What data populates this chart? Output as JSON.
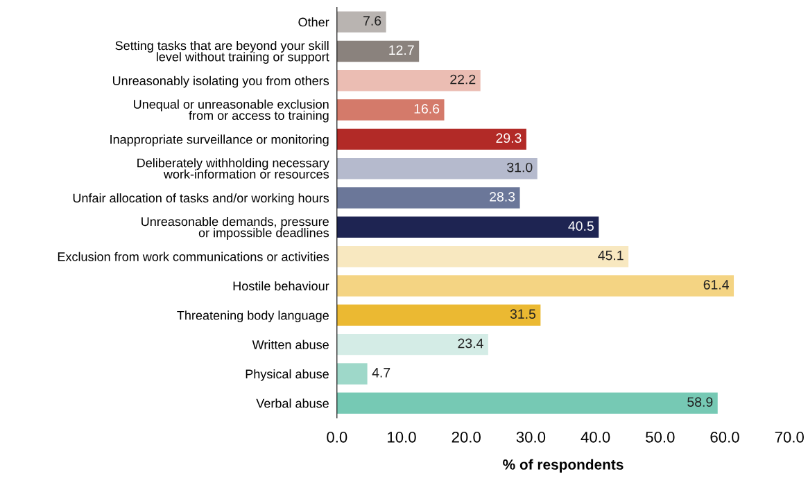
{
  "chart_data": {
    "type": "bar",
    "orientation": "horizontal",
    "xlabel": "% of respondents",
    "categories": [
      "Other",
      "Setting tasks that are beyond your skill\nlevel without training or support",
      "Unreasonably isolating you from others",
      "Unequal or unreasonable exclusion\nfrom or access to training",
      "Inappropriate surveillance or monitoring",
      "Deliberately withholding necessary\nwork-information or resources",
      "Unfair allocation of tasks and/or working hours",
      "Unreasonable demands, pressure\nor impossible deadlines",
      "Exclusion from work communications or activities",
      "Hostile behaviour",
      "Threatening body language",
      "Written abuse",
      "Physical abuse",
      "Verbal abuse"
    ],
    "values": [
      7.6,
      12.7,
      22.2,
      16.6,
      29.3,
      31.0,
      28.3,
      40.5,
      45.1,
      61.4,
      31.5,
      23.4,
      4.7,
      58.9
    ],
    "value_labels": [
      "7.6",
      "12.7",
      "22.2",
      "16.6",
      "29.3",
      "31.0",
      "28.3",
      "40.5",
      "45.1",
      "61.4",
      "31.5",
      "23.4",
      "4.7",
      "58.9"
    ],
    "colors": [
      "#b9b4b1",
      "#8a827d",
      "#ebbdb3",
      "#d47a6a",
      "#b22a27",
      "#b5bacd",
      "#6b7799",
      "#1e2452",
      "#f8e8c0",
      "#f4d483",
      "#ebb932",
      "#d4ece6",
      "#9ed8c9",
      "#76c9b4"
    ],
    "xlim": [
      0,
      70
    ],
    "xticks": [
      {
        "value": 0,
        "label": "0.0"
      },
      {
        "value": 10,
        "label": "10.0"
      },
      {
        "value": 20,
        "label": "20.0"
      },
      {
        "value": 30,
        "label": "30.0"
      },
      {
        "value": 40,
        "label": "40.0"
      },
      {
        "value": 50,
        "label": "50.0"
      },
      {
        "value": 60,
        "label": "60.0"
      },
      {
        "value": 70,
        "label": "70.0"
      }
    ],
    "grid": false,
    "legend": false
  }
}
